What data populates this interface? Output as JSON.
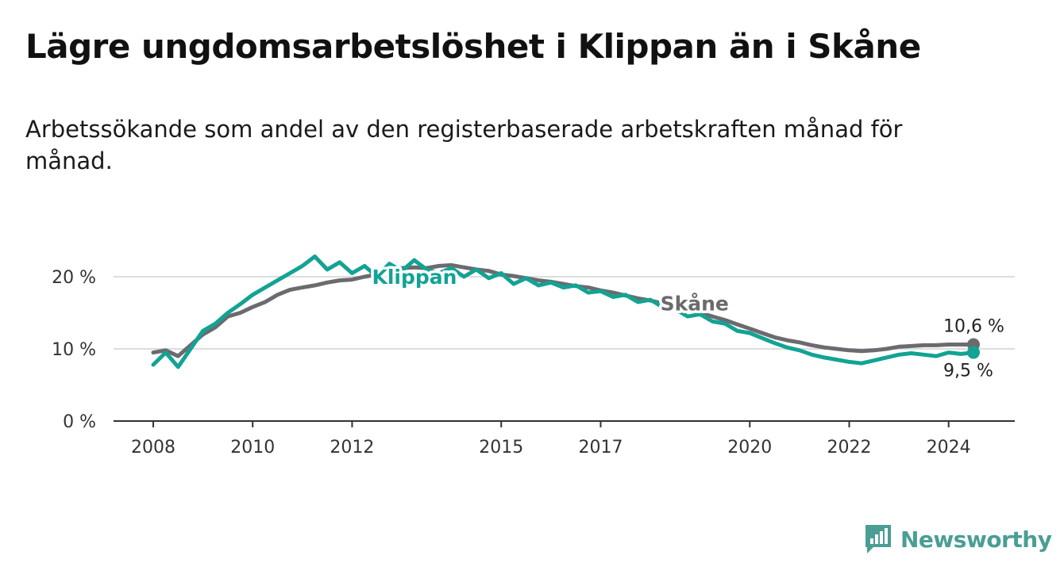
{
  "header": {
    "title": "Lägre ungdomsarbetslöshet i Klippan än i Skåne",
    "subtitle": "Arbetssökande som andel av den registerbaserade arbetskraften månad för månad."
  },
  "brand": {
    "name": "Newsworthy",
    "color": "#4a9e94",
    "icon": "bar-chart-badge-icon"
  },
  "chart_data": {
    "type": "line",
    "x_unit": "year",
    "xlim": [
      2008,
      2025
    ],
    "ylim": [
      0,
      22
    ],
    "ytick_values": [
      0,
      10,
      20
    ],
    "ytick_labels": [
      "0 %",
      "10 %",
      "20 %"
    ],
    "xtick_values": [
      2008,
      2010,
      2012,
      2015,
      2017,
      2020,
      2022,
      2024
    ],
    "xtick_labels": [
      "2008",
      "2010",
      "2012",
      "2015",
      "2017",
      "2020",
      "2022",
      "2024"
    ],
    "grid": true,
    "colors": {
      "grid": "#dddddd",
      "axis": "#333333"
    },
    "series": [
      {
        "name": "Skåne",
        "color": "#6b6b6f",
        "label_at": 2018.2,
        "end_label": "10,6 %",
        "points": [
          [
            2008,
            9.5
          ],
          [
            2008.25,
            9.8
          ],
          [
            2008.5,
            9.0
          ],
          [
            2008.75,
            10.5
          ],
          [
            2009,
            12.0
          ],
          [
            2009.25,
            13.0
          ],
          [
            2009.5,
            14.5
          ],
          [
            2009.75,
            15.0
          ],
          [
            2010,
            15.8
          ],
          [
            2010.25,
            16.5
          ],
          [
            2010.5,
            17.5
          ],
          [
            2010.75,
            18.2
          ],
          [
            2011,
            18.5
          ],
          [
            2011.25,
            18.8
          ],
          [
            2011.5,
            19.2
          ],
          [
            2011.75,
            19.5
          ],
          [
            2012,
            19.6
          ],
          [
            2012.25,
            20.0
          ],
          [
            2012.5,
            20.3
          ],
          [
            2012.75,
            20.8
          ],
          [
            2013,
            21.2
          ],
          [
            2013.25,
            21.3
          ],
          [
            2013.5,
            21.2
          ],
          [
            2013.75,
            21.5
          ],
          [
            2014,
            21.6
          ],
          [
            2014.25,
            21.3
          ],
          [
            2014.5,
            21.0
          ],
          [
            2014.75,
            20.8
          ],
          [
            2015,
            20.3
          ],
          [
            2015.25,
            20.1
          ],
          [
            2015.5,
            19.8
          ],
          [
            2015.75,
            19.5
          ],
          [
            2016,
            19.3
          ],
          [
            2016.25,
            19.0
          ],
          [
            2016.5,
            18.7
          ],
          [
            2016.75,
            18.5
          ],
          [
            2017,
            18.1
          ],
          [
            2017.25,
            17.8
          ],
          [
            2017.5,
            17.4
          ],
          [
            2017.75,
            17.0
          ],
          [
            2018,
            16.7
          ],
          [
            2018.25,
            16.3
          ],
          [
            2018.5,
            15.9
          ],
          [
            2018.75,
            15.4
          ],
          [
            2019,
            15.0
          ],
          [
            2019.25,
            14.5
          ],
          [
            2019.5,
            14.0
          ],
          [
            2019.75,
            13.4
          ],
          [
            2020,
            12.8
          ],
          [
            2020.25,
            12.2
          ],
          [
            2020.5,
            11.6
          ],
          [
            2020.75,
            11.2
          ],
          [
            2021,
            10.9
          ],
          [
            2021.25,
            10.5
          ],
          [
            2021.5,
            10.2
          ],
          [
            2021.75,
            10.0
          ],
          [
            2022,
            9.8
          ],
          [
            2022.25,
            9.7
          ],
          [
            2022.5,
            9.8
          ],
          [
            2022.75,
            10.0
          ],
          [
            2023,
            10.3
          ],
          [
            2023.25,
            10.4
          ],
          [
            2023.5,
            10.5
          ],
          [
            2023.75,
            10.5
          ],
          [
            2024,
            10.6
          ],
          [
            2024.25,
            10.6
          ],
          [
            2024.5,
            10.6
          ]
        ]
      },
      {
        "name": "Klippan",
        "color": "#12a394",
        "label_at": 2012.4,
        "end_label": "9,5 %",
        "points": [
          [
            2008,
            7.8
          ],
          [
            2008.25,
            9.5
          ],
          [
            2008.5,
            7.5
          ],
          [
            2008.75,
            10.0
          ],
          [
            2009,
            12.5
          ],
          [
            2009.25,
            13.5
          ],
          [
            2009.5,
            15.0
          ],
          [
            2009.75,
            16.2
          ],
          [
            2010,
            17.5
          ],
          [
            2010.25,
            18.5
          ],
          [
            2010.5,
            19.5
          ],
          [
            2010.75,
            20.5
          ],
          [
            2011,
            21.5
          ],
          [
            2011.25,
            22.8
          ],
          [
            2011.5,
            21.0
          ],
          [
            2011.75,
            22.0
          ],
          [
            2012,
            20.5
          ],
          [
            2012.25,
            21.5
          ],
          [
            2012.5,
            20.0
          ],
          [
            2012.75,
            21.8
          ],
          [
            2013,
            20.8
          ],
          [
            2013.25,
            22.3
          ],
          [
            2013.5,
            21.0
          ],
          [
            2013.75,
            20.5
          ],
          [
            2014,
            21.2
          ],
          [
            2014.25,
            20.0
          ],
          [
            2014.5,
            21.0
          ],
          [
            2014.75,
            19.8
          ],
          [
            2015,
            20.5
          ],
          [
            2015.25,
            19.0
          ],
          [
            2015.5,
            19.8
          ],
          [
            2015.75,
            18.8
          ],
          [
            2016,
            19.2
          ],
          [
            2016.25,
            18.5
          ],
          [
            2016.5,
            18.8
          ],
          [
            2016.75,
            17.8
          ],
          [
            2017,
            18.0
          ],
          [
            2017.25,
            17.2
          ],
          [
            2017.5,
            17.5
          ],
          [
            2017.75,
            16.5
          ],
          [
            2018,
            16.8
          ],
          [
            2018.25,
            15.8
          ],
          [
            2018.5,
            15.5
          ],
          [
            2018.75,
            14.5
          ],
          [
            2019,
            14.8
          ],
          [
            2019.25,
            13.8
          ],
          [
            2019.5,
            13.5
          ],
          [
            2019.75,
            12.5
          ],
          [
            2020,
            12.2
          ],
          [
            2020.25,
            11.5
          ],
          [
            2020.5,
            10.8
          ],
          [
            2020.75,
            10.2
          ],
          [
            2021,
            9.8
          ],
          [
            2021.25,
            9.2
          ],
          [
            2021.5,
            8.8
          ],
          [
            2021.75,
            8.5
          ],
          [
            2022,
            8.2
          ],
          [
            2022.25,
            8.0
          ],
          [
            2022.5,
            8.4
          ],
          [
            2022.75,
            8.8
          ],
          [
            2023,
            9.2
          ],
          [
            2023.25,
            9.4
          ],
          [
            2023.5,
            9.2
          ],
          [
            2023.75,
            9.0
          ],
          [
            2024,
            9.5
          ],
          [
            2024.25,
            9.3
          ],
          [
            2024.5,
            9.5
          ]
        ]
      }
    ]
  }
}
